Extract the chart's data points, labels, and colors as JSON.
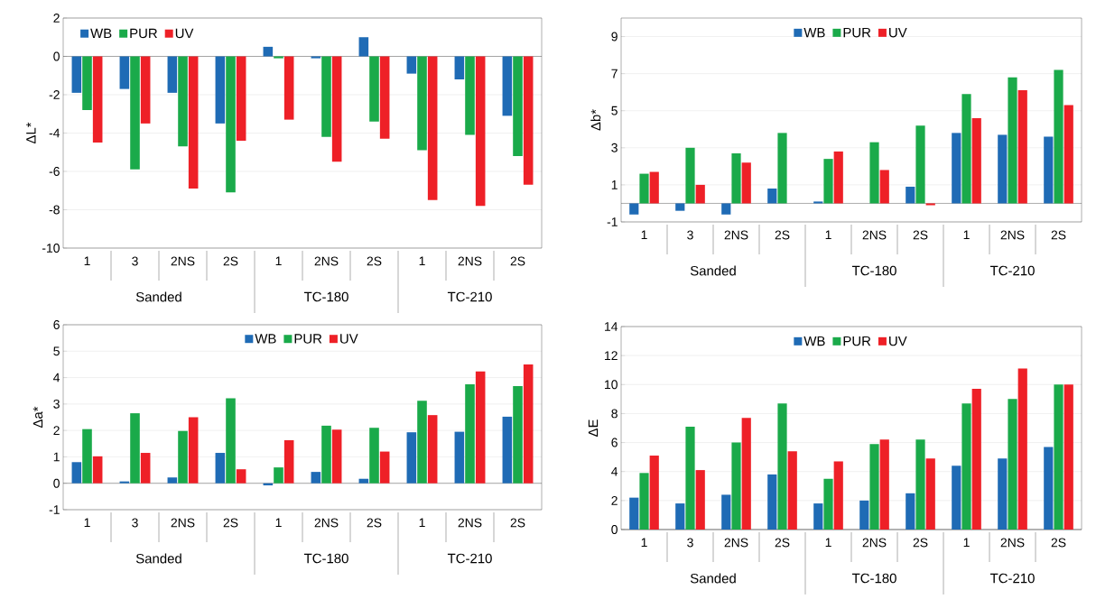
{
  "chart_data": [
    {
      "type": "bar",
      "ylabel": "ΔL*",
      "categories": [
        "1",
        "3",
        "2NS",
        "2S",
        "1",
        "2NS",
        "2S",
        "1",
        "2NS",
        "2S"
      ],
      "ylim": [
        -10,
        2
      ],
      "yticks": [
        -10,
        -8,
        -6,
        -4,
        -2,
        0,
        2
      ],
      "grid": "y",
      "legend": "top left",
      "annotations": [
        "Sanded",
        "TC-180",
        "TC-210"
      ],
      "series": [
        {
          "name": "WB",
          "color": "#1f6bb5",
          "values": [
            -1.9,
            -1.7,
            -1.9,
            -3.5,
            0.5,
            -0.1,
            1.0,
            -0.9,
            -1.2,
            -3.1
          ]
        },
        {
          "name": "PUR",
          "color": "#1aaa4a",
          "values": [
            -2.8,
            -5.9,
            -4.7,
            -7.1,
            -0.1,
            -4.2,
            -3.4,
            -4.9,
            -4.1,
            -5.2
          ]
        },
        {
          "name": "UV",
          "color": "#ee2027",
          "values": [
            -4.5,
            -3.5,
            -6.9,
            -4.4,
            -3.3,
            -5.5,
            -4.3,
            -7.5,
            -7.8,
            -6.7
          ]
        }
      ]
    },
    {
      "type": "bar",
      "ylabel": "Δb*",
      "categories": [
        "1",
        "3",
        "2NS",
        "2S",
        "1",
        "2NS",
        "2S",
        "1",
        "2NS",
        "2S"
      ],
      "ylim": [
        -1,
        10
      ],
      "yticks": [
        -1,
        1,
        3,
        5,
        7,
        9
      ],
      "grid": "y",
      "legend": "top",
      "annotations": [
        "Sanded",
        "TC-180",
        "TC-210"
      ],
      "series": [
        {
          "name": "WB",
          "color": "#1f6bb5",
          "values": [
            -0.6,
            -0.4,
            -0.6,
            0.8,
            0.1,
            0,
            0.9,
            3.8,
            3.7,
            3.6
          ]
        },
        {
          "name": "PUR",
          "color": "#1aaa4a",
          "values": [
            1.6,
            3.0,
            2.7,
            3.8,
            2.4,
            3.3,
            4.2,
            5.9,
            6.8,
            7.2
          ]
        },
        {
          "name": "UV",
          "color": "#ee2027",
          "values": [
            1.7,
            1.0,
            2.2,
            0,
            2.8,
            1.8,
            -0.1,
            4.6,
            6.1,
            5.3
          ]
        }
      ]
    },
    {
      "type": "bar",
      "ylabel": "Δa*",
      "categories": [
        "1",
        "3",
        "2NS",
        "2S",
        "1",
        "2NS",
        "2S",
        "1",
        "2NS",
        "2S"
      ],
      "ylim": [
        -1,
        6
      ],
      "yticks": [
        -1,
        0,
        1,
        2,
        3,
        4,
        5,
        6
      ],
      "grid": "y",
      "legend": "top",
      "annotations": [
        "Sanded",
        "TC-180",
        "TC-210"
      ],
      "series": [
        {
          "name": "WB",
          "color": "#1f6bb5",
          "values": [
            0.8,
            0.07,
            0.22,
            1.15,
            -0.08,
            0.43,
            0.17,
            1.93,
            1.95,
            2.52
          ]
        },
        {
          "name": "PUR",
          "color": "#1aaa4a",
          "values": [
            2.05,
            2.65,
            1.98,
            3.22,
            0.6,
            2.18,
            2.1,
            3.12,
            3.75,
            3.68
          ]
        },
        {
          "name": "UV",
          "color": "#ee2027",
          "values": [
            1.02,
            1.15,
            2.5,
            0.53,
            1.63,
            2.03,
            1.2,
            2.58,
            4.23,
            4.5
          ]
        }
      ]
    },
    {
      "type": "bar",
      "ylabel": "ΔE",
      "categories": [
        "1",
        "3",
        "2NS",
        "2S",
        "1",
        "2NS",
        "2S",
        "1",
        "2NS",
        "2S"
      ],
      "ylim": [
        0,
        14
      ],
      "yticks": [
        0,
        2,
        4,
        6,
        8,
        10,
        12,
        14
      ],
      "grid": "y",
      "legend": "top",
      "annotations": [
        "Sanded",
        "TC-180",
        "TC-210"
      ],
      "series": [
        {
          "name": "WB",
          "color": "#1f6bb5",
          "values": [
            2.2,
            1.8,
            2.4,
            3.8,
            1.8,
            2.0,
            2.5,
            4.4,
            4.9,
            5.7
          ]
        },
        {
          "name": "PUR",
          "color": "#1aaa4a",
          "values": [
            3.9,
            7.1,
            6.0,
            8.7,
            3.5,
            5.9,
            6.2,
            8.7,
            9.0,
            10.0
          ]
        },
        {
          "name": "UV",
          "color": "#ee2027",
          "values": [
            5.1,
            4.1,
            7.7,
            5.4,
            4.7,
            6.2,
            4.9,
            9.7,
            11.1,
            10.0
          ]
        }
      ]
    }
  ]
}
